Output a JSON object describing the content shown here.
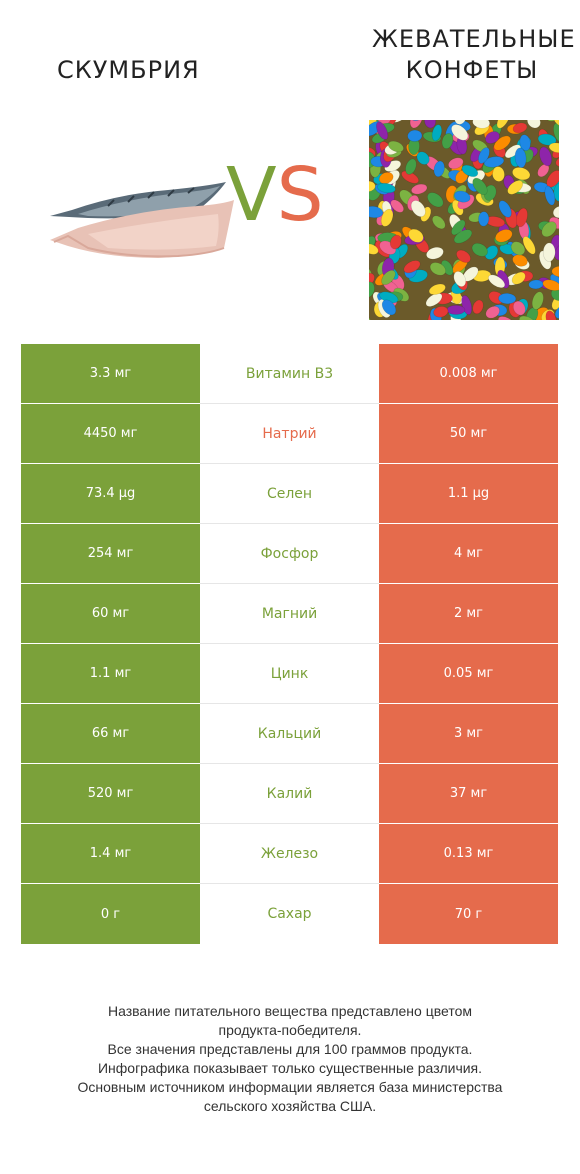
{
  "header": {
    "left_title": "СКУМБРИЯ",
    "right_title_line1": "ЖЕВАТЕЛЬНЫЕ",
    "right_title_line2": "КОНФЕТЫ",
    "vs_v": "V",
    "vs_s": "S"
  },
  "colors": {
    "left_winner": "#7ba13a",
    "right_winner": "#e56b4c"
  },
  "rows": [
    {
      "left": "3.3 мг",
      "nutrient": "Витамин B3",
      "right": "0.008 мг",
      "winner": "left"
    },
    {
      "left": "4450 мг",
      "nutrient": "Натрий",
      "right": "50 мг",
      "winner": "right"
    },
    {
      "left": "73.4 µg",
      "nutrient": "Селен",
      "right": "1.1 µg",
      "winner": "left"
    },
    {
      "left": "254 мг",
      "nutrient": "Фосфор",
      "right": "4 мг",
      "winner": "left"
    },
    {
      "left": "60 мг",
      "nutrient": "Магний",
      "right": "2 мг",
      "winner": "left"
    },
    {
      "left": "1.1 мг",
      "nutrient": "Цинк",
      "right": "0.05 мг",
      "winner": "left"
    },
    {
      "left": "66 мг",
      "nutrient": "Кальций",
      "right": "3 мг",
      "winner": "left"
    },
    {
      "left": "520 мг",
      "nutrient": "Калий",
      "right": "37 мг",
      "winner": "left"
    },
    {
      "left": "1.4 мг",
      "nutrient": "Железо",
      "right": "0.13 мг",
      "winner": "left"
    },
    {
      "left": "0 г",
      "nutrient": "Сахар",
      "right": "70 г",
      "winner": "left"
    }
  ],
  "footer": {
    "line1": "Название питательного вещества представлено цветом",
    "line2": "продукта-победителя.",
    "line3": "Все значения представлены для 100 граммов продукта.",
    "line4": "Инфографика показывает только существенные различия.",
    "line5": "Основным источником информации является база министерства",
    "line6": "сельского хозяйства США."
  }
}
